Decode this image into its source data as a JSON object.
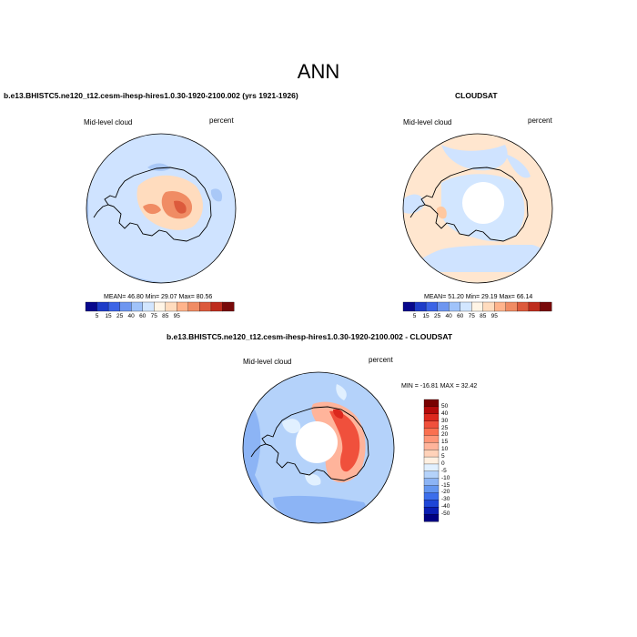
{
  "page": {
    "title": "ANN"
  },
  "panels": [
    {
      "title": "b.e13.BHISTC5.ne120_t12.cesm-ihesp-hires1.0.30-1920-2100.002 (yrs 1921-1926)",
      "variable": "Mid-level cloud",
      "units": "percent",
      "stats": "MEAN= 46.80  Min= 29.07  Max= 80.56"
    },
    {
      "title": "CLOUDSAT",
      "variable": "Mid-level cloud",
      "units": "percent",
      "stats": "MEAN= 51.20  Min= 29.19  Max= 66.14"
    },
    {
      "title": "b.e13.BHISTC5.ne120_t12.cesm-ihesp-hires1.0.30-1920-2100.002 - CLOUDSAT",
      "variable": "Mid-level cloud",
      "units": "percent",
      "stats": "MIN = -16.81 MAX =  32.42"
    }
  ],
  "colorbars": {
    "absolute": {
      "labels": [
        "5",
        "15",
        "25",
        "40",
        "60",
        "75",
        "85",
        "95"
      ],
      "colors": [
        "#08088c",
        "#1e3cc8",
        "#3c64e6",
        "#6e96f0",
        "#a0c3fa",
        "#d2e6ff",
        "#fff5e6",
        "#ffdcbe",
        "#ffb48c",
        "#f08c64",
        "#dc5a3c",
        "#be2d1e",
        "#780a0a"
      ]
    },
    "difference": {
      "labels": [
        "50",
        "40",
        "30",
        "25",
        "20",
        "15",
        "10",
        "5",
        "0",
        "-5",
        "-10",
        "-15",
        "-20",
        "-30",
        "-40",
        "-50"
      ],
      "colors": [
        "#780000",
        "#b40a0a",
        "#dc281e",
        "#f0503c",
        "#fa7050",
        "#ff9678",
        "#ffb49b",
        "#ffd2b9",
        "#fff0e1",
        "#e1f0ff",
        "#b4d2fa",
        "#8cb4f5",
        "#6496f0",
        "#3c6eeb",
        "#1e46d7",
        "#0a1eb4",
        "#000082"
      ]
    }
  },
  "map_colors": {
    "ocean_a": "#cfe3ff",
    "ocean_b": "#a9c8f7",
    "land_warm": "#ffdcbe",
    "hot": "#f08c64",
    "hotter": "#dc5a3c",
    "diff_cold": "#8cb4f5",
    "diff_cool": "#b4d2fa"
  }
}
